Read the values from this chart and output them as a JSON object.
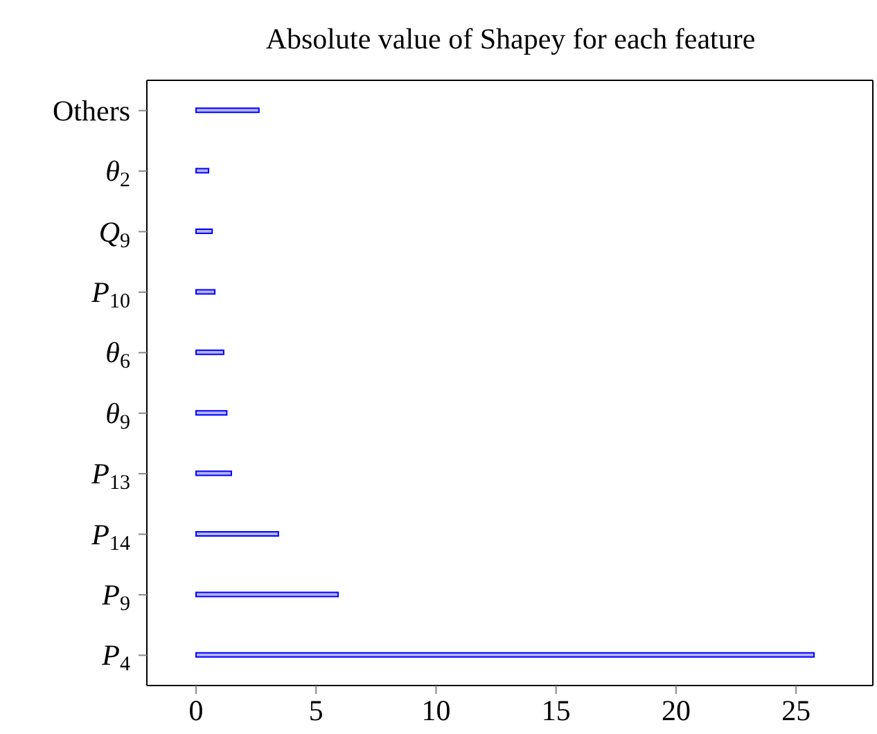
{
  "chart_data": {
    "type": "bar",
    "orientation": "horizontal",
    "title": "Absolute value of Shapey for each feature",
    "categories": [
      "Others",
      "θ$_{2}$",
      "Q$_{9}$",
      "P$_{10}$",
      "θ$_{6}$",
      "θ$_{9}$",
      "P$_{13}$",
      "P$_{14}$",
      "P$_{9}$",
      "P$_{4}$"
    ],
    "values": [
      2.62,
      0.52,
      0.67,
      0.78,
      1.15,
      1.28,
      1.47,
      3.43,
      5.92,
      25.75
    ],
    "color": "#b3b3ff",
    "xlim": [
      -2.05,
      28.2
    ],
    "xticks": [
      0,
      5,
      10,
      15,
      20,
      25
    ]
  }
}
